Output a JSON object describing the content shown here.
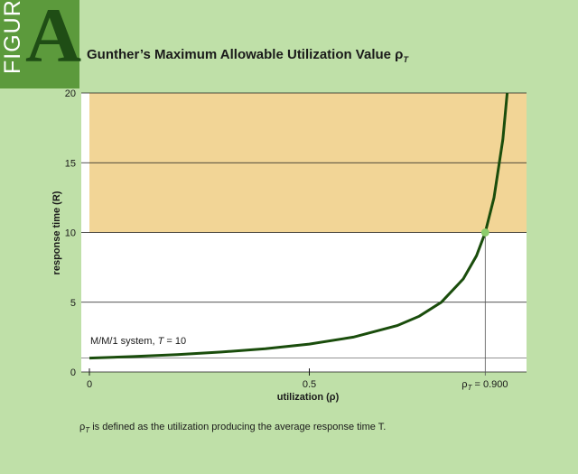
{
  "badge": {
    "word": "FIGURE",
    "letter": "A"
  },
  "title": {
    "main": "Gunther’s Maximum Allowable Utilization Value ρ",
    "sub": "T"
  },
  "footnote": {
    "symbol": "ρ",
    "sub": "T",
    "text": " is defined as the utilization producing the average response time T."
  },
  "colors": {
    "background": "#bfe0a8",
    "badge": "#5c9a3c",
    "badge_letter": "#1f4d15",
    "shaded_region": "#f2d596",
    "plot_area": "#ffffff",
    "curve": "#1a4d0c",
    "marker": "#8ccc6c",
    "grid": "#1a1a1a"
  },
  "chart_data": {
    "type": "line",
    "xlabel": "utilization (ρ)",
    "ylabel": "response time (R)",
    "xlim": [
      0,
      1
    ],
    "ylim": [
      0,
      20
    ],
    "y_ticks": [
      "0",
      "5",
      "10",
      "15",
      "20"
    ],
    "x_ticks": [
      "0",
      "0.5"
    ],
    "x_special_tick": {
      "value": 0.9,
      "symbol": "ρ",
      "sub": "T",
      "text": " = 0.900"
    },
    "grid": "horizontal",
    "shaded_region": {
      "y_from": 10,
      "y_to": 20
    },
    "annotation": {
      "text_before": "M/M/1 system,  ",
      "var": "T",
      "text_after": " = 10"
    },
    "series": [
      {
        "formula": "R = 1/(1 - ρ)",
        "x": [
          0,
          0.1,
          0.2,
          0.3,
          0.4,
          0.5,
          0.6,
          0.7,
          0.75,
          0.8,
          0.85,
          0.88,
          0.9,
          0.92,
          0.94,
          0.95
        ],
        "y": [
          1,
          1.11,
          1.25,
          1.43,
          1.67,
          2,
          2.5,
          3.33,
          4,
          5,
          6.67,
          8.33,
          10,
          12.5,
          16.67,
          20
        ]
      }
    ],
    "highlight_point": {
      "x": 0.9,
      "y": 10
    }
  }
}
